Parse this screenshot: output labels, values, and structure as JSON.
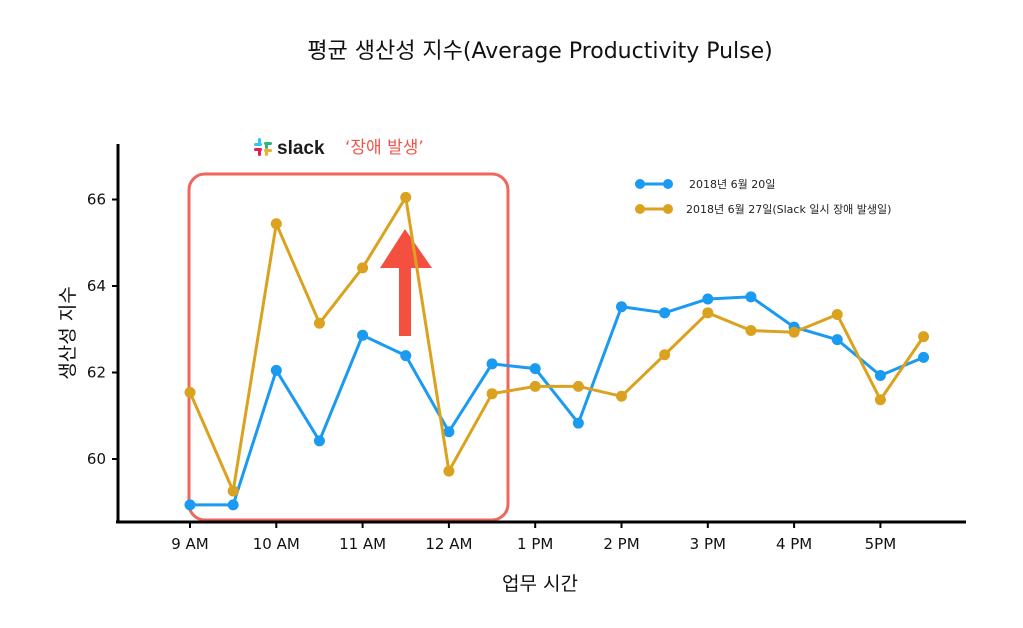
{
  "chart_data": {
    "type": "line",
    "title": "평균 생산성 지수(Average Productivity Pulse)",
    "xlabel": "업무 시간",
    "ylabel": "생산성 지수",
    "x": [
      "9:00",
      "9:30",
      "10:00",
      "10:30",
      "11:00",
      "11:30",
      "12:00",
      "12:30",
      "13:00",
      "13:30",
      "14:00",
      "14:30",
      "15:00",
      "15:30",
      "16:00",
      "16:30",
      "17:00",
      "17:30"
    ],
    "x_tick_labels": [
      "9 AM",
      "10 AM",
      "11 AM",
      "12 AM",
      "1 PM",
      "2 PM",
      "3 PM",
      "4 PM",
      "5PM"
    ],
    "y_ticks": [
      60,
      62,
      64,
      66
    ],
    "ylim": [
      58.6,
      67.3
    ],
    "grid": false,
    "legend_position": "upper right",
    "series": [
      {
        "name": "2018년 6월 20일",
        "color": "#1a9af0",
        "values": [
          58.94,
          58.94,
          62.05,
          60.42,
          62.86,
          62.39,
          60.63,
          62.2,
          62.09,
          60.83,
          63.52,
          63.38,
          63.7,
          63.75,
          63.05,
          62.76,
          61.93,
          62.35
        ]
      },
      {
        "name": "2018년 6월 27일(Slack 일시 장애 발생일)",
        "color": "#dba21f",
        "values": [
          61.54,
          59.26,
          65.44,
          63.14,
          64.42,
          66.05,
          59.72,
          61.51,
          61.68,
          61.68,
          61.45,
          62.41,
          63.38,
          62.97,
          62.93,
          63.34,
          61.37,
          62.83
        ]
      }
    ],
    "annotations": [
      {
        "type": "highlight-box",
        "label_brand": "slack",
        "label_text": "‘장애 발생’",
        "x_range": [
          "9:00",
          "12:30"
        ],
        "color": "#f0554a"
      },
      {
        "type": "arrow-up",
        "color": "#f0554a",
        "near": "11:30"
      }
    ]
  }
}
